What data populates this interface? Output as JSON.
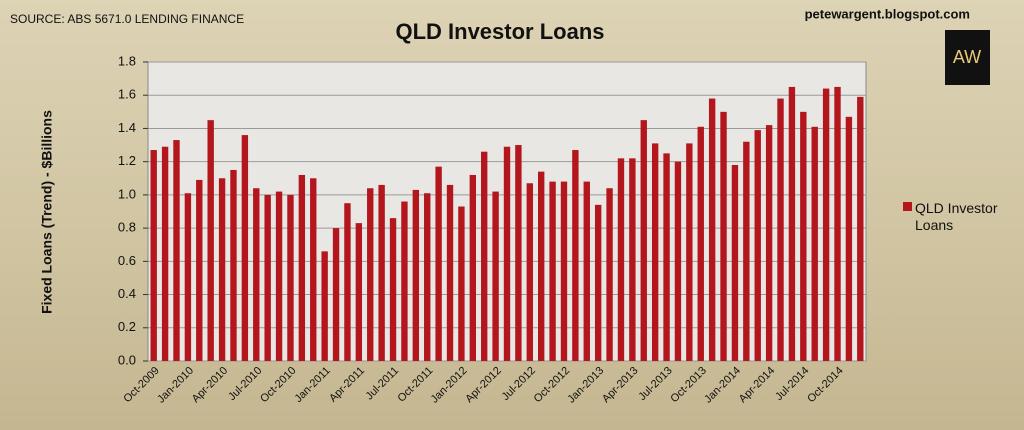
{
  "chart_data": {
    "type": "bar",
    "title": "QLD Investor Loans",
    "source": "SOURCE: ABS 5671.0 LENDING FINANCE",
    "site": "petewargent.blogspot.com",
    "logo": "AW",
    "y_label": "Fixed Loans (Trend) - $Billions",
    "legend_position": "right",
    "grid": true,
    "series": [
      {
        "name": "QLD Investor Loans",
        "color": "#b3161d",
        "values": [
          1.27,
          1.29,
          1.33,
          1.01,
          1.09,
          1.45,
          1.1,
          1.15,
          1.36,
          1.04,
          1.0,
          1.02,
          1.0,
          1.12,
          1.1,
          0.66,
          0.8,
          0.95,
          0.83,
          1.04,
          1.06,
          0.86,
          0.96,
          1.03,
          1.01,
          1.17,
          1.06,
          0.93,
          1.12,
          1.26,
          1.02,
          1.29,
          1.3,
          1.07,
          1.14,
          1.08,
          1.08,
          1.27,
          1.08,
          0.94,
          1.04,
          1.22,
          1.22,
          1.45,
          1.31,
          1.25,
          1.2,
          1.31,
          1.41,
          1.58,
          1.5,
          1.18,
          1.32,
          1.39,
          1.42,
          1.58,
          1.65,
          1.5,
          1.41,
          1.64,
          1.65,
          1.47,
          1.59
        ]
      }
    ],
    "categories": [
      "Oct-2009",
      null,
      null,
      "Jan-2010",
      null,
      null,
      "Apr-2010",
      null,
      null,
      "Jul-2010",
      null,
      null,
      "Oct-2010",
      null,
      null,
      "Jan-2011",
      null,
      null,
      "Apr-2011",
      null,
      null,
      "Jul-2011",
      null,
      null,
      "Oct-2011",
      null,
      null,
      "Jan-2012",
      null,
      null,
      "Apr-2012",
      null,
      null,
      "Jul-2012",
      null,
      null,
      "Oct-2012",
      null,
      null,
      "Jan-2013",
      null,
      null,
      "Apr-2013",
      null,
      null,
      "Jul-2013",
      null,
      null,
      "Oct-2013",
      null,
      null,
      "Jan-2014",
      null,
      null,
      "Apr-2014",
      null,
      null,
      "Jul-2014",
      null,
      null,
      "Oct-2014",
      null,
      null
    ],
    "ylim": [
      0,
      1.8
    ],
    "yticks": [
      {
        "value": 0,
        "label": "0.0"
      },
      0.2,
      0.4,
      0.6,
      0.8,
      {
        "value": 1,
        "label": "1.0"
      },
      1.2,
      1.4,
      1.6,
      1.8
    ]
  }
}
